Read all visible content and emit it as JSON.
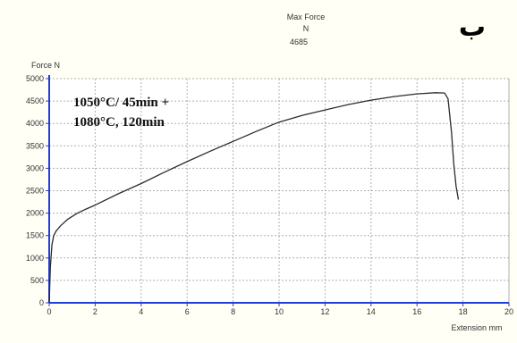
{
  "header": {
    "line1": "Max Force",
    "line2": "N",
    "line3": "4685",
    "corner_letter": "ب"
  },
  "chart_data": {
    "type": "line",
    "title": "",
    "xlabel": "Extension mm",
    "ylabel": "Force N",
    "xlim": [
      0,
      20
    ],
    "ylim": [
      0,
      5000
    ],
    "x_ticks": [
      "0",
      "2",
      "4",
      "6",
      "8",
      "10",
      "12",
      "14",
      "16",
      "18",
      "20"
    ],
    "y_ticks": [
      "0",
      "500",
      "1000",
      "1500",
      "2000",
      "2500",
      "3000",
      "3500",
      "4000",
      "4500",
      "5000"
    ],
    "grid": true,
    "annotation": [
      "1050°C/ 45min +",
      "1080°C, 120min"
    ],
    "series": [
      {
        "color": "#2b2b2b",
        "x": [
          0,
          0.05,
          0.12,
          0.2,
          0.3,
          0.5,
          0.8,
          1.2,
          1.6,
          2,
          3,
          4,
          5,
          6,
          7,
          8,
          9,
          10,
          11,
          12,
          13,
          14,
          15,
          16,
          16.8,
          17.2,
          17.35,
          17.5,
          17.6,
          17.7,
          17.8
        ],
        "y": [
          0,
          800,
          1300,
          1500,
          1600,
          1720,
          1860,
          1990,
          2090,
          2180,
          2430,
          2660,
          2910,
          3150,
          3380,
          3600,
          3820,
          4030,
          4180,
          4300,
          4420,
          4520,
          4600,
          4660,
          4685,
          4680,
          4550,
          3800,
          3100,
          2600,
          2300
        ]
      }
    ],
    "colors": {
      "background": "#fffff5",
      "plot_background": "#ffffff",
      "grid": "#b0b0b0",
      "axis": "#1f3fd9",
      "curve": "#2b2b2b"
    }
  }
}
